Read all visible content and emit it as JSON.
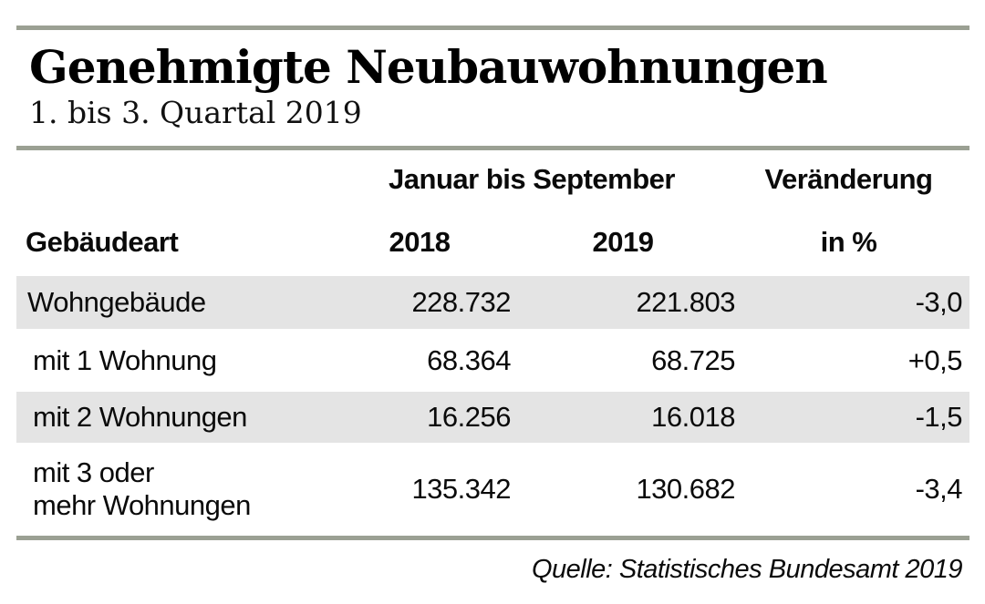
{
  "title": "Genehmigte Neubauwohnungen",
  "subtitle": "1. bis 3. Quartal 2019",
  "colors": {
    "rule": "#9ba093",
    "row_band": "#e4e4e4",
    "text": "#0a0a0a",
    "background": "#ffffff"
  },
  "table": {
    "group_header": "Januar bis September",
    "change_header": "Veränderung",
    "label_header": "Gebäudeart",
    "year_2018_header": "2018",
    "year_2019_header": "2019",
    "change_unit_header": "in %",
    "rows": [
      {
        "label": "Wohngebäude",
        "y2018": "228.732",
        "y2019": "221.803",
        "change": "-3,0"
      },
      {
        "label": "mit 1 Wohnung",
        "y2018": "68.364",
        "y2019": "68.725",
        "change": "+0,5"
      },
      {
        "label": "mit 2 Wohnungen",
        "y2018": "16.256",
        "y2019": "16.018",
        "change": "-1,5"
      },
      {
        "label": "mit 3 oder\nmehr Wohnungen",
        "y2018": "135.342",
        "y2019": "130.682",
        "change": "-3,4"
      }
    ]
  },
  "source": "Quelle: Statistisches Bundesamt 2019",
  "chart_data": {
    "type": "table",
    "title": "Genehmigte Neubauwohnungen",
    "subtitle": "1. bis 3. Quartal 2019",
    "columns": [
      "Gebäudeart",
      "Januar bis September 2018",
      "Januar bis September 2019",
      "Veränderung in %"
    ],
    "rows": [
      [
        "Wohngebäude",
        228732,
        221803,
        -3.0
      ],
      [
        "mit 1 Wohnung",
        68364,
        68725,
        0.5
      ],
      [
        "mit 2 Wohnungen",
        16256,
        16018,
        -1.5
      ],
      [
        "mit 3 oder mehr Wohnungen",
        135342,
        130682,
        -3.4
      ]
    ],
    "source": "Quelle: Statistisches Bundesamt 2019"
  }
}
